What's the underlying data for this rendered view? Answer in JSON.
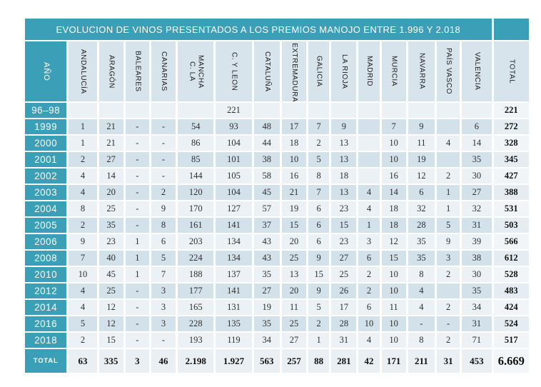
{
  "title": "EVOLUCION DE VINOS PRESENTADOS A LOS PREMIOS MANOJO ENTRE 1.996  Y 2.018",
  "colors": {
    "teal": "#3b9fb8",
    "header_bg": "#d8e4eb",
    "row_light": "#ebf1f4",
    "row_blue": "#d2e1ea"
  },
  "chart_data": {
    "type": "table",
    "title": "EVOLUCION DE VINOS PRESENTADOS A LOS PREMIOS MANOJO ENTRE 1.996  Y 2.018",
    "columns": [
      "AÑO",
      "ANDALUCÍA",
      "ARAGÓN",
      "BALEARES",
      "CANARIAS",
      "C. LA\nMANCHA",
      "C. Y LEON",
      "CATALUÑA",
      "EXTREMADURA",
      "GALICIA",
      "LA RIOJA",
      "MADRID",
      "MURCIA",
      "NAVARRA",
      "PAÍS VASCO",
      "VALENCIA",
      "TOTAL"
    ],
    "rows": [
      {
        "year": "96–98",
        "values": [
          "",
          "",
          "",
          "",
          "",
          "221",
          "",
          "",
          "",
          "",
          "",
          "",
          "",
          "",
          ""
        ],
        "total": "221"
      },
      {
        "year": "1999",
        "values": [
          "1",
          "21",
          "-",
          "-",
          "54",
          "93",
          "48",
          "17",
          "7",
          "9",
          "",
          "7",
          "9",
          "",
          "6"
        ],
        "total": "272"
      },
      {
        "year": "2000",
        "values": [
          "1",
          "21",
          "-",
          "-",
          "86",
          "104",
          "44",
          "18",
          "2",
          "13",
          "",
          "10",
          "11",
          "4",
          "14"
        ],
        "total": "328"
      },
      {
        "year": "2001",
        "values": [
          "2",
          "27",
          "-",
          "-",
          "85",
          "101",
          "38",
          "10",
          "5",
          "13",
          "",
          "10",
          "19",
          "",
          "35"
        ],
        "total": "345"
      },
      {
        "year": "2002",
        "values": [
          "4",
          "14",
          "-",
          "-",
          "144",
          "105",
          "58",
          "16",
          "8",
          "18",
          "",
          "16",
          "12",
          "2",
          "30"
        ],
        "total": "427"
      },
      {
        "year": "2003",
        "values": [
          "4",
          "20",
          "-",
          "2",
          "120",
          "104",
          "45",
          "21",
          "7",
          "13",
          "4",
          "14",
          "6",
          "1",
          "27"
        ],
        "total": "388"
      },
      {
        "year": "2004",
        "values": [
          "8",
          "25",
          "-",
          "9",
          "170",
          "127",
          "57",
          "19",
          "6",
          "23",
          "4",
          "18",
          "32",
          "1",
          "32"
        ],
        "total": "531"
      },
      {
        "year": "2005",
        "values": [
          "2",
          "35",
          "-",
          "8",
          "161",
          "141",
          "37",
          "15",
          "6",
          "15",
          "1",
          "18",
          "28",
          "5",
          "31"
        ],
        "total": "503"
      },
      {
        "year": "2006",
        "values": [
          "9",
          "23",
          "1",
          "6",
          "203",
          "134",
          "43",
          "20",
          "6",
          "23",
          "3",
          "12",
          "35",
          "9",
          "39"
        ],
        "total": "566"
      },
      {
        "year": "2008",
        "values": [
          "7",
          "40",
          "1",
          "5",
          "224",
          "134",
          "43",
          "25",
          "9",
          "27",
          "6",
          "15",
          "35",
          "3",
          "38"
        ],
        "total": "612"
      },
      {
        "year": "2010",
        "values": [
          "10",
          "45",
          "1",
          "7",
          "188",
          "137",
          "35",
          "13",
          "15",
          "25",
          "2",
          "10",
          "8",
          "2",
          "30"
        ],
        "total": "528"
      },
      {
        "year": "2012",
        "values": [
          "4",
          "25",
          "-",
          "3",
          "177",
          "141",
          "27",
          "20",
          "9",
          "26",
          "2",
          "10",
          "4",
          "",
          "35"
        ],
        "total": "483"
      },
      {
        "year": "2014",
        "values": [
          "4",
          "12",
          "-",
          "3",
          "165",
          "131",
          "19",
          "11",
          "5",
          "17",
          "6",
          "11",
          "4",
          "2",
          "34"
        ],
        "total": "424"
      },
      {
        "year": "2016",
        "values": [
          "5",
          "12",
          "-",
          "3",
          "228",
          "135",
          "35",
          "25",
          "2",
          "28",
          "10",
          "10",
          "-",
          "-",
          "31"
        ],
        "total": "524"
      },
      {
        "year": "2018",
        "values": [
          "2",
          "15",
          "-",
          "-",
          "193",
          "119",
          "34",
          "27",
          "1",
          "31",
          "4",
          "10",
          "8",
          "2",
          "71"
        ],
        "total": "517"
      }
    ],
    "totals_row": {
      "label": "TOTAL",
      "values": [
        "63",
        "335",
        "3",
        "46",
        "2.198",
        "1.927",
        "563",
        "257",
        "88",
        "281",
        "42",
        "171",
        "211",
        "31",
        "453"
      ],
      "grand_total": "6.669"
    }
  }
}
